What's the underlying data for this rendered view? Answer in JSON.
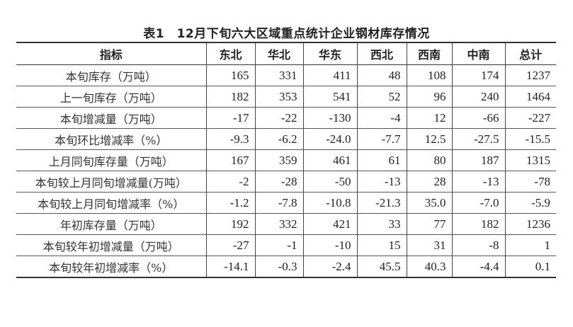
{
  "title": "表1　12月下旬六大区域重点统计企业钢材库存情况",
  "headers": [
    "指标",
    "东北",
    "华北",
    "华东",
    "西北",
    "西南",
    "中南",
    "总计"
  ],
  "rows": [
    {
      "label": "本旬库存（万吨）",
      "values": [
        "165",
        "331",
        "411",
        "48",
        "108",
        "174",
        "1237"
      ]
    },
    {
      "label": "上一旬库存（万吨）",
      "values": [
        "182",
        "353",
        "541",
        "52",
        "96",
        "240",
        "1464"
      ]
    },
    {
      "label": "本旬增减量（万吨）",
      "values": [
        "-17",
        "-22",
        "-130",
        "-4",
        "12",
        "-66",
        "-227"
      ]
    },
    {
      "label": "本旬环比增减率（%）",
      "values": [
        "-9.3",
        "-6.2",
        "-24.0",
        "-7.7",
        "12.5",
        "-27.5",
        "-15.5"
      ]
    },
    {
      "label": "上月同旬库存量（万吨）",
      "values": [
        "167",
        "359",
        "461",
        "61",
        "80",
        "187",
        "1315"
      ]
    },
    {
      "label": "本旬较上月同旬增减量(万吨）",
      "values": [
        "-2",
        "-28",
        "-50",
        "-13",
        "28",
        "-13",
        "-78"
      ]
    },
    {
      "label": "本旬较上月同旬增减率（%）",
      "values": [
        "-1.2",
        "-7.8",
        "-10.8",
        "-21.3",
        "35.0",
        "-7.0",
        "-5.9"
      ]
    },
    {
      "label": "年初库存量（万吨）",
      "values": [
        "192",
        "332",
        "421",
        "33",
        "77",
        "182",
        "1236"
      ]
    },
    {
      "label": "本旬较年初增减量（万吨）",
      "values": [
        "-27",
        "-1",
        "-10",
        "15",
        "31",
        "-8",
        "1"
      ]
    },
    {
      "label": "本旬较年初增减率（%）",
      "values": [
        "-14.1",
        "-0.3",
        "-2.4",
        "45.5",
        "40.3",
        "-4.4",
        "0.1"
      ]
    }
  ]
}
